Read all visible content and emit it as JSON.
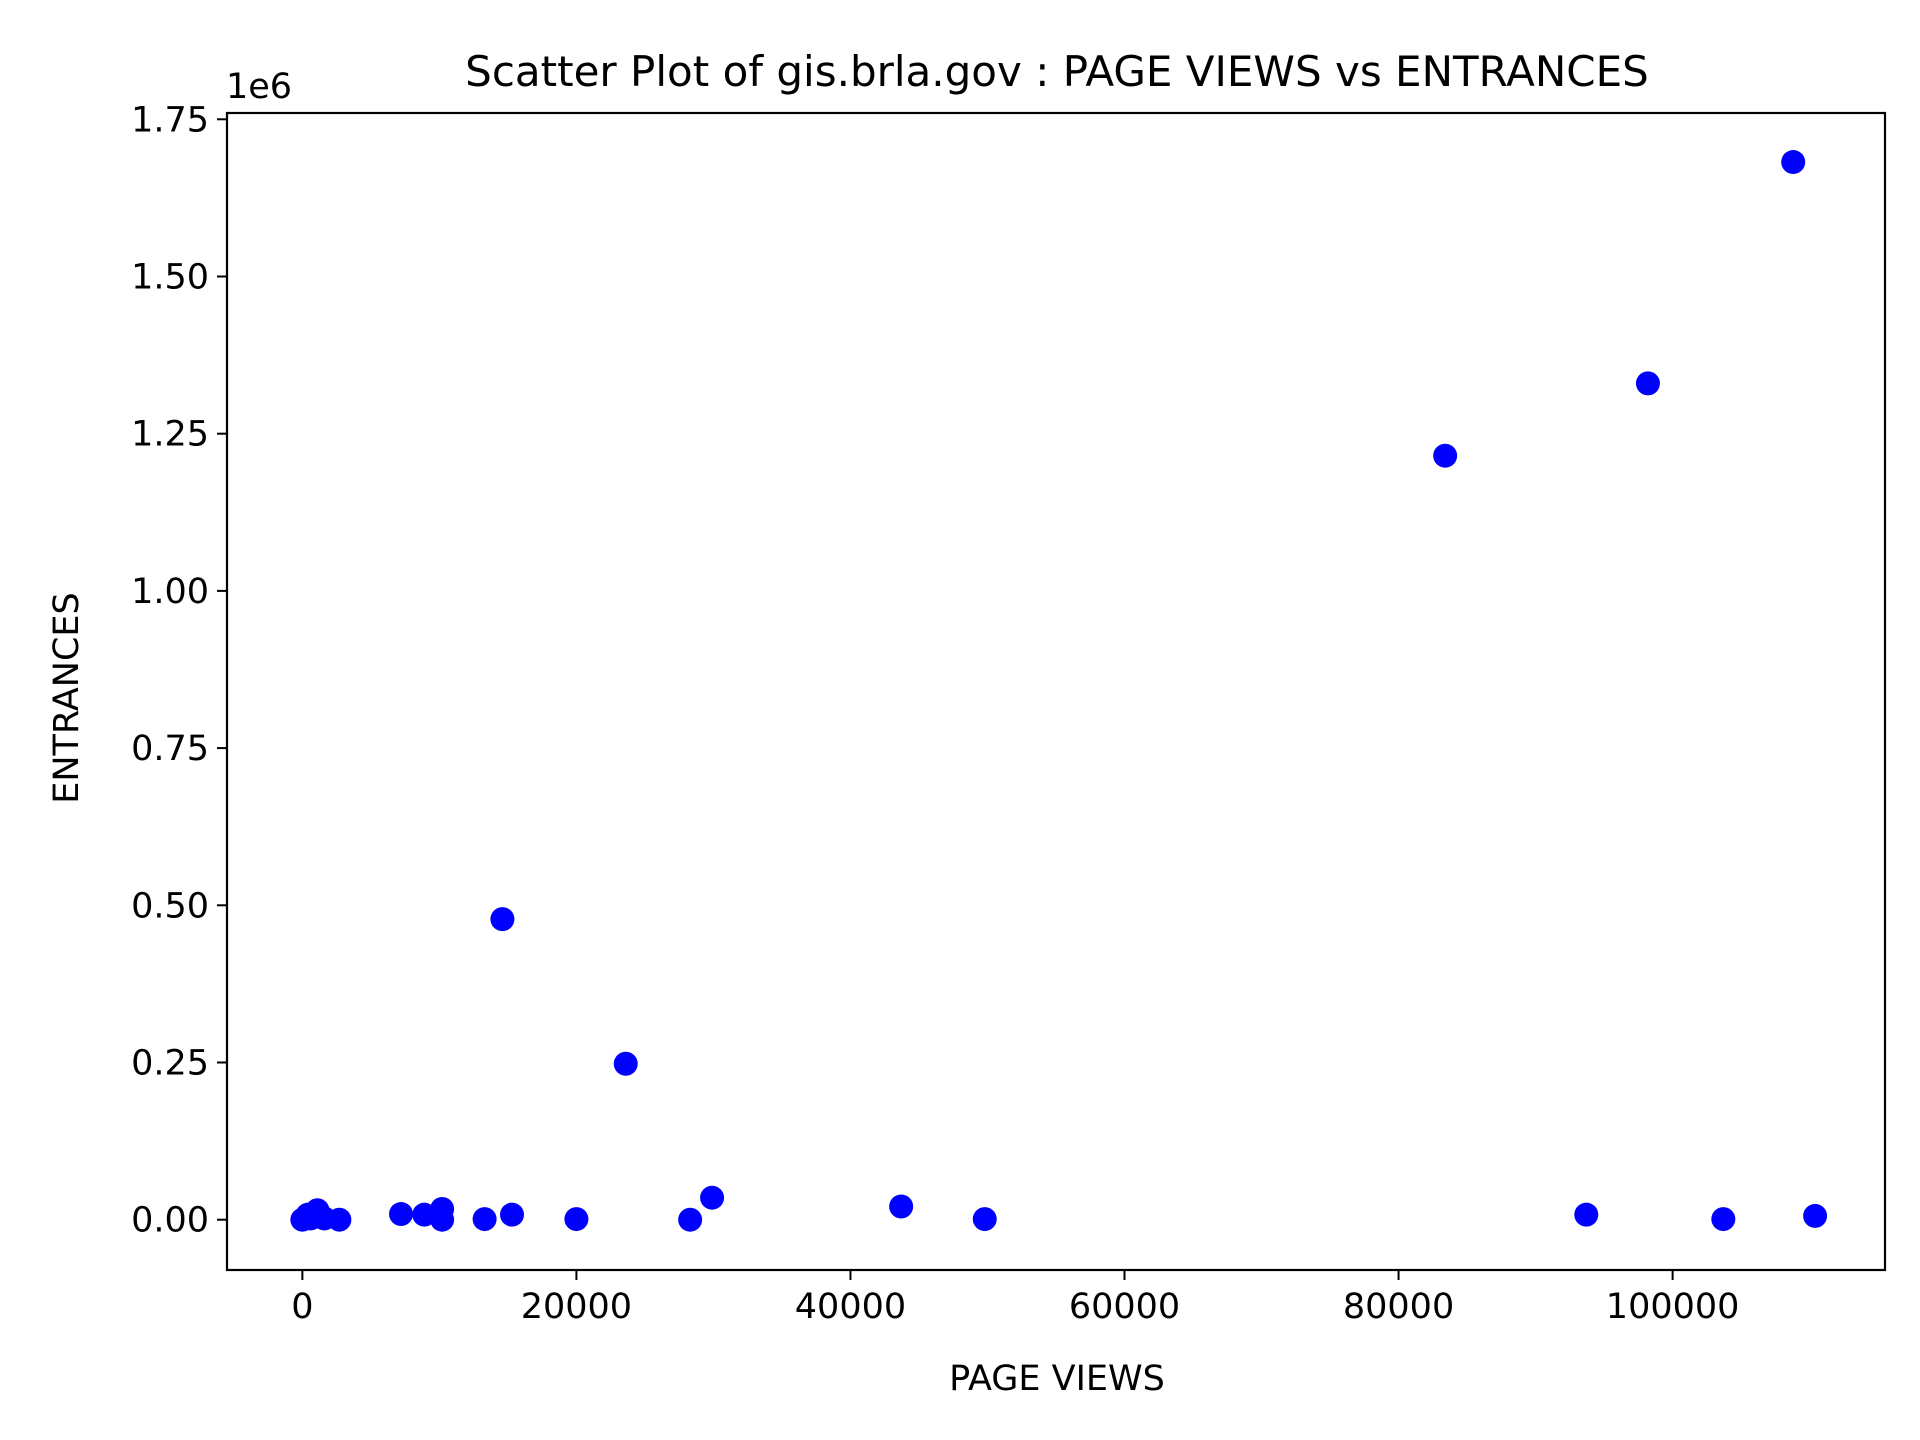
{
  "chart_data": {
    "type": "scatter",
    "title": "Scatter Plot of gis.brla.gov : PAGE VIEWS vs ENTRANCES",
    "xlabel": "PAGE VIEWS",
    "ylabel": "ENTRANCES",
    "y_offset_label": "1e6",
    "xlim": [
      -5500,
      115500
    ],
    "ylim": [
      -80000,
      1760000
    ],
    "x_ticks": [
      0,
      20000,
      40000,
      60000,
      80000,
      100000
    ],
    "x_tick_labels": [
      "0",
      "20000",
      "40000",
      "60000",
      "80000",
      "100000"
    ],
    "y_ticks": [
      0,
      250000,
      500000,
      750000,
      1000000,
      1250000,
      1500000,
      1750000
    ],
    "y_tick_labels": [
      "0.00",
      "0.25",
      "0.50",
      "0.75",
      "1.00",
      "1.25",
      "1.50",
      "1.75"
    ],
    "grid": false,
    "color": "#0000ff",
    "points": [
      {
        "x": 0,
        "y": 0
      },
      {
        "x": 200,
        "y": 3000
      },
      {
        "x": 400,
        "y": 8000
      },
      {
        "x": 600,
        "y": 2000
      },
      {
        "x": 800,
        "y": 10000
      },
      {
        "x": 1100,
        "y": 15000
      },
      {
        "x": 1300,
        "y": 5000
      },
      {
        "x": 1600,
        "y": 2000
      },
      {
        "x": 2700,
        "y": 0
      },
      {
        "x": 7200,
        "y": 9000
      },
      {
        "x": 8900,
        "y": 8000
      },
      {
        "x": 10200,
        "y": 17000
      },
      {
        "x": 10200,
        "y": 0
      },
      {
        "x": 13300,
        "y": 1000
      },
      {
        "x": 14600,
        "y": 478000
      },
      {
        "x": 15300,
        "y": 8000
      },
      {
        "x": 20000,
        "y": 1000
      },
      {
        "x": 23600,
        "y": 248000
      },
      {
        "x": 28300,
        "y": 0
      },
      {
        "x": 29900,
        "y": 35000
      },
      {
        "x": 43700,
        "y": 21000
      },
      {
        "x": 49800,
        "y": 1000
      },
      {
        "x": 83400,
        "y": 1215000
      },
      {
        "x": 93700,
        "y": 8000
      },
      {
        "x": 98200,
        "y": 1330000
      },
      {
        "x": 103700,
        "y": 1000
      },
      {
        "x": 108800,
        "y": 1682000
      },
      {
        "x": 110400,
        "y": 6000
      }
    ]
  }
}
